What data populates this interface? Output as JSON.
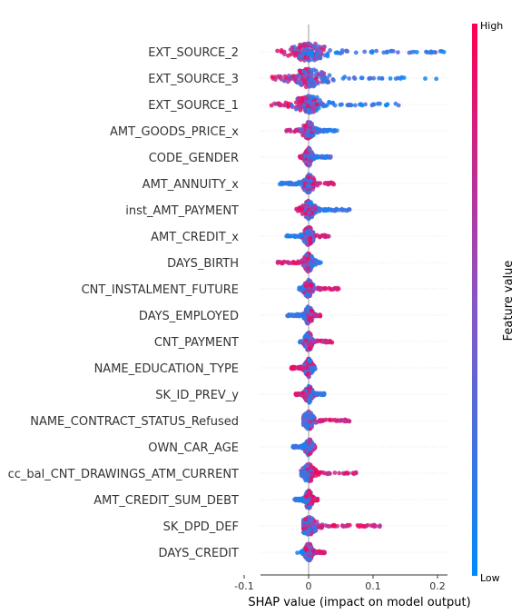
{
  "chart_data": {
    "type": "scatter",
    "subtype": "shap-beeswarm",
    "xlabel": "SHAP value (impact on model output)",
    "xticks": [
      -0.1,
      0.0,
      0.1,
      0.2
    ],
    "xlim": [
      -0.075,
      0.225
    ],
    "colorbar": {
      "label": "Feature value",
      "high_label": "High",
      "low_label": "Low",
      "high_color": "#ff0052",
      "low_color": "#008bfb"
    },
    "features": [
      {
        "name": "EXT_SOURCE_2",
        "min": -0.062,
        "max": 0.21,
        "low_side": "positive"
      },
      {
        "name": "EXT_SOURCE_3",
        "min": -0.057,
        "max": 0.205,
        "low_side": "positive"
      },
      {
        "name": "EXT_SOURCE_1",
        "min": -0.06,
        "max": 0.148,
        "low_side": "positive"
      },
      {
        "name": "AMT_GOODS_PRICE_x",
        "min": -0.035,
        "max": 0.045,
        "low_side": "positive"
      },
      {
        "name": "CODE_GENDER",
        "min": -0.015,
        "max": 0.035,
        "low_side": "positive"
      },
      {
        "name": "AMT_ANNUITY_x",
        "min": -0.045,
        "max": 0.04,
        "low_side": "negative"
      },
      {
        "name": "inst_AMT_PAYMENT",
        "min": -0.02,
        "max": 0.065,
        "low_side": "positive"
      },
      {
        "name": "AMT_CREDIT_x",
        "min": -0.04,
        "max": 0.032,
        "low_side": "negative"
      },
      {
        "name": "DAYS_BIRTH",
        "min": -0.048,
        "max": 0.02,
        "low_side": "positive"
      },
      {
        "name": "CNT_INSTALMENT_FUTURE",
        "min": -0.015,
        "max": 0.048,
        "low_side": "negative"
      },
      {
        "name": "DAYS_EMPLOYED",
        "min": -0.035,
        "max": 0.018,
        "low_side": "negative"
      },
      {
        "name": "CNT_PAYMENT",
        "min": -0.015,
        "max": 0.038,
        "low_side": "negative"
      },
      {
        "name": "NAME_EDUCATION_TYPE",
        "min": -0.028,
        "max": 0.01,
        "low_side": "positive"
      },
      {
        "name": "SK_ID_PREV_y",
        "min": -0.02,
        "max": 0.025,
        "low_side": "positive"
      },
      {
        "name": "NAME_CONTRACT_STATUS_Refused",
        "min": -0.008,
        "max": 0.068,
        "low_side": "negative"
      },
      {
        "name": "OWN_CAR_AGE",
        "min": -0.025,
        "max": 0.01,
        "low_side": "negative"
      },
      {
        "name": "cc_bal_CNT_DRAWINGS_ATM_CURRENT",
        "min": -0.012,
        "max": 0.075,
        "low_side": "negative"
      },
      {
        "name": "AMT_CREDIT_SUM_DEBT",
        "min": -0.022,
        "max": 0.015,
        "low_side": "negative"
      },
      {
        "name": "SK_DPD_DEF",
        "min": -0.008,
        "max": 0.112,
        "low_side": "negative"
      },
      {
        "name": "DAYS_CREDIT",
        "min": -0.018,
        "max": 0.025,
        "low_side": "negative"
      }
    ]
  }
}
